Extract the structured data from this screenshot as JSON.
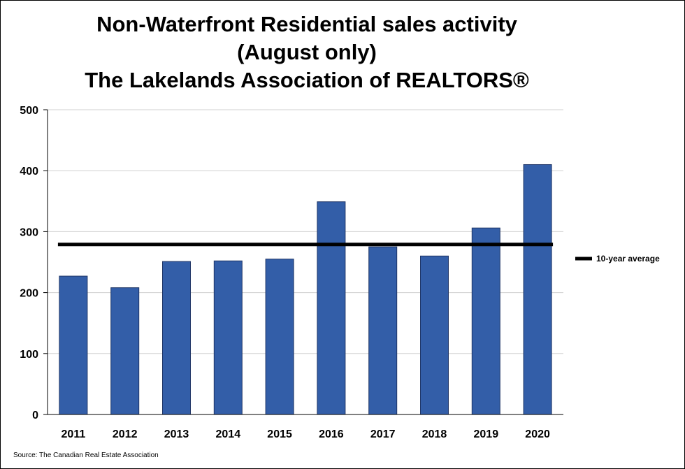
{
  "chart_data": {
    "type": "bar",
    "title_lines": [
      "Non-Waterfront Residential sales activity",
      "(August only)",
      "The Lakelands Association of REALTORS®"
    ],
    "categories": [
      "2011",
      "2012",
      "2013",
      "2014",
      "2015",
      "2016",
      "2017",
      "2018",
      "2019",
      "2020"
    ],
    "series": [
      {
        "values": [
          227,
          208,
          251,
          252,
          255,
          349,
          275,
          260,
          306,
          410
        ]
      }
    ],
    "average": {
      "name": "10-year average",
      "value": 279
    },
    "ylim": [
      0,
      500
    ],
    "yticks": [
      0,
      100,
      200,
      300,
      400,
      500
    ],
    "xlabel": "",
    "ylabel": "",
    "grid": true,
    "legend_position": "right",
    "bar_color": "#335ea8",
    "bar_edge_color": "#1f3566",
    "average_color": "#000000",
    "grid_color": "#d0d0d0"
  },
  "source": "Source: The Canadian Real Estate Association"
}
